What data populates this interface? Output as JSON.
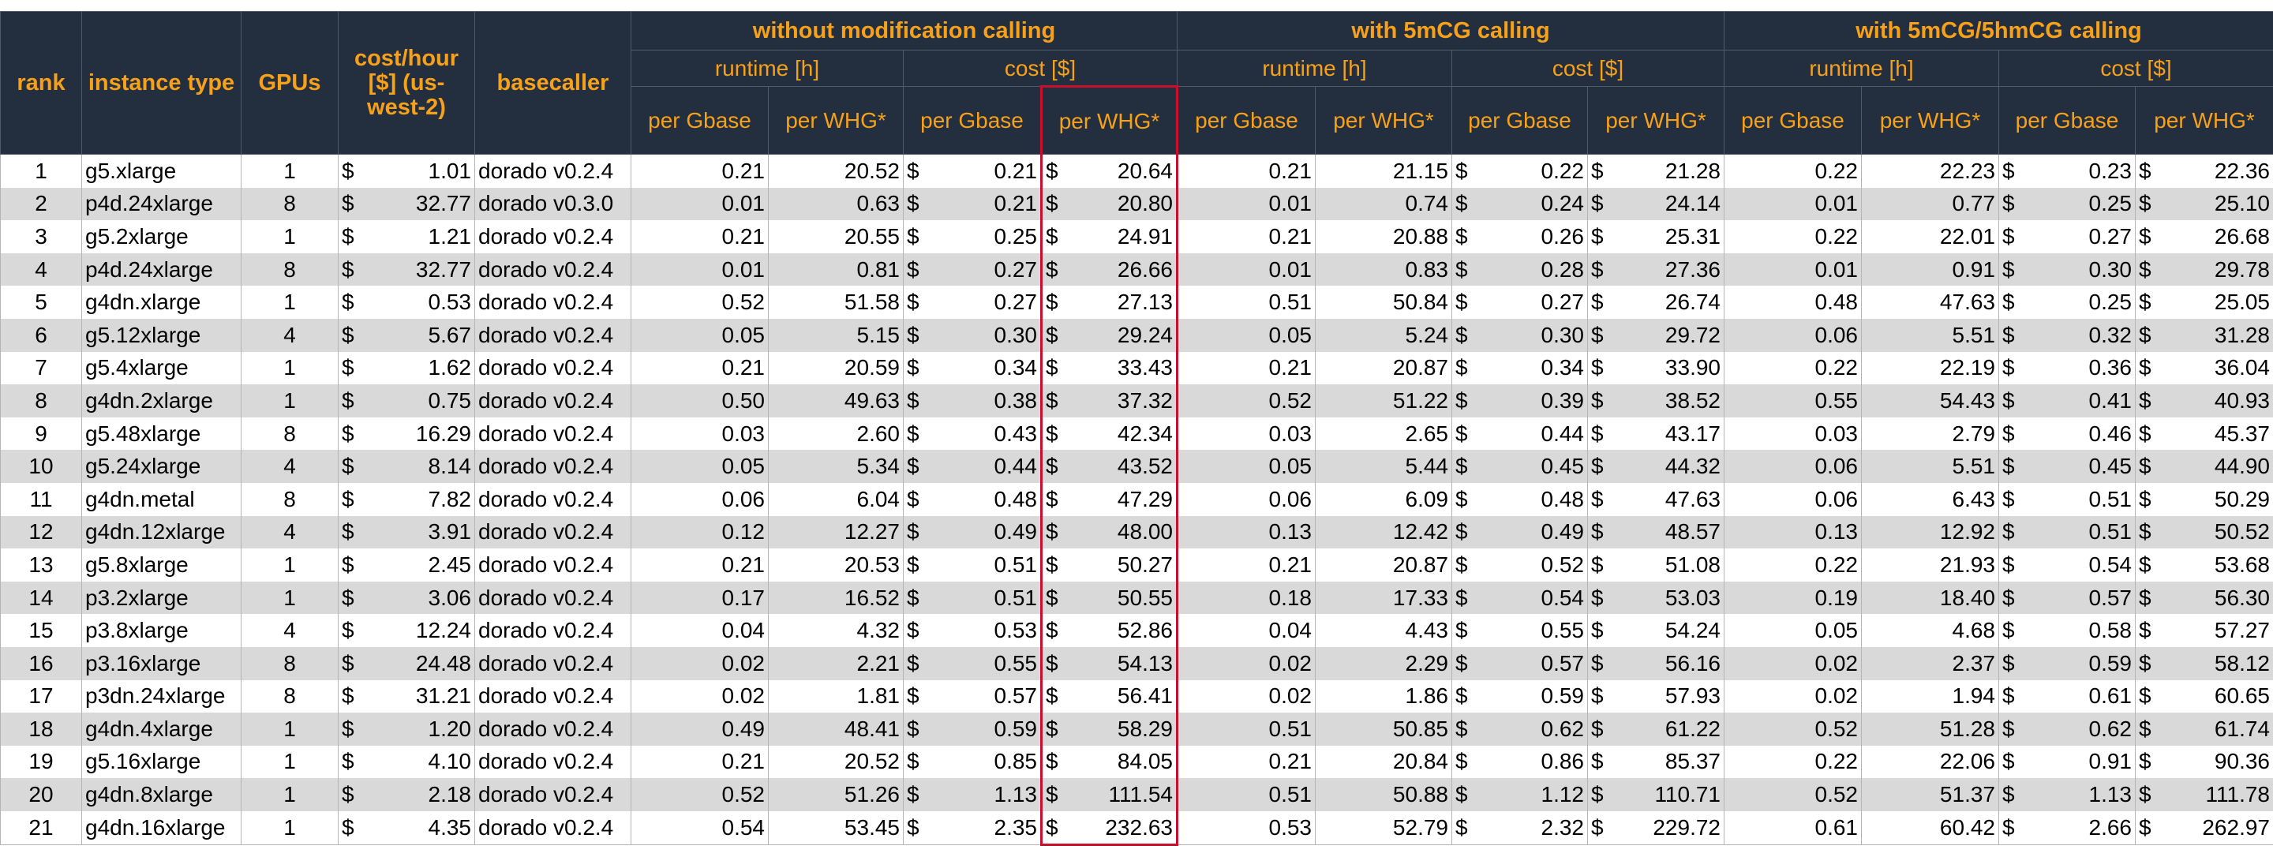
{
  "currency": "$",
  "header": {
    "columns": [
      "rank",
      "instance type",
      "GPUs",
      "cost/hour [$] (us-west-2)",
      "basecaller"
    ],
    "groups": [
      "without modification calling",
      "with 5mCG calling",
      "with 5mCG/5hmCG calling"
    ],
    "metrics": [
      "runtime [h]",
      "cost [$]"
    ],
    "units": [
      "per Gbase",
      "per WHG*"
    ]
  },
  "table": {
    "rows": [
      [
        "1",
        "g5.xlarge",
        "1",
        "1.01",
        "dorado v0.2.4",
        "0.21",
        "20.52",
        "0.21",
        "20.64",
        "0.21",
        "21.15",
        "0.22",
        "21.28",
        "0.22",
        "22.23",
        "0.23",
        "22.36"
      ],
      [
        "2",
        "p4d.24xlarge",
        "8",
        "32.77",
        "dorado v0.3.0",
        "0.01",
        "0.63",
        "0.21",
        "20.80",
        "0.01",
        "0.74",
        "0.24",
        "24.14",
        "0.01",
        "0.77",
        "0.25",
        "25.10"
      ],
      [
        "3",
        "g5.2xlarge",
        "1",
        "1.21",
        "dorado v0.2.4",
        "0.21",
        "20.55",
        "0.25",
        "24.91",
        "0.21",
        "20.88",
        "0.26",
        "25.31",
        "0.22",
        "22.01",
        "0.27",
        "26.68"
      ],
      [
        "4",
        "p4d.24xlarge",
        "8",
        "32.77",
        "dorado v0.2.4",
        "0.01",
        "0.81",
        "0.27",
        "26.66",
        "0.01",
        "0.83",
        "0.28",
        "27.36",
        "0.01",
        "0.91",
        "0.30",
        "29.78"
      ],
      [
        "5",
        "g4dn.xlarge",
        "1",
        "0.53",
        "dorado v0.2.4",
        "0.52",
        "51.58",
        "0.27",
        "27.13",
        "0.51",
        "50.84",
        "0.27",
        "26.74",
        "0.48",
        "47.63",
        "0.25",
        "25.05"
      ],
      [
        "6",
        "g5.12xlarge",
        "4",
        "5.67",
        "dorado v0.2.4",
        "0.05",
        "5.15",
        "0.30",
        "29.24",
        "0.05",
        "5.24",
        "0.30",
        "29.72",
        "0.06",
        "5.51",
        "0.32",
        "31.28"
      ],
      [
        "7",
        "g5.4xlarge",
        "1",
        "1.62",
        "dorado v0.2.4",
        "0.21",
        "20.59",
        "0.34",
        "33.43",
        "0.21",
        "20.87",
        "0.34",
        "33.90",
        "0.22",
        "22.19",
        "0.36",
        "36.04"
      ],
      [
        "8",
        "g4dn.2xlarge",
        "1",
        "0.75",
        "dorado v0.2.4",
        "0.50",
        "49.63",
        "0.38",
        "37.32",
        "0.52",
        "51.22",
        "0.39",
        "38.52",
        "0.55",
        "54.43",
        "0.41",
        "40.93"
      ],
      [
        "9",
        "g5.48xlarge",
        "8",
        "16.29",
        "dorado v0.2.4",
        "0.03",
        "2.60",
        "0.43",
        "42.34",
        "0.03",
        "2.65",
        "0.44",
        "43.17",
        "0.03",
        "2.79",
        "0.46",
        "45.37"
      ],
      [
        "10",
        "g5.24xlarge",
        "4",
        "8.14",
        "dorado v0.2.4",
        "0.05",
        "5.34",
        "0.44",
        "43.52",
        "0.05",
        "5.44",
        "0.45",
        "44.32",
        "0.06",
        "5.51",
        "0.45",
        "44.90"
      ],
      [
        "11",
        "g4dn.metal",
        "8",
        "7.82",
        "dorado v0.2.4",
        "0.06",
        "6.04",
        "0.48",
        "47.29",
        "0.06",
        "6.09",
        "0.48",
        "47.63",
        "0.06",
        "6.43",
        "0.51",
        "50.29"
      ],
      [
        "12",
        "g4dn.12xlarge",
        "4",
        "3.91",
        "dorado v0.2.4",
        "0.12",
        "12.27",
        "0.49",
        "48.00",
        "0.13",
        "12.42",
        "0.49",
        "48.57",
        "0.13",
        "12.92",
        "0.51",
        "50.52"
      ],
      [
        "13",
        "g5.8xlarge",
        "1",
        "2.45",
        "dorado v0.2.4",
        "0.21",
        "20.53",
        "0.51",
        "50.27",
        "0.21",
        "20.87",
        "0.52",
        "51.08",
        "0.22",
        "21.93",
        "0.54",
        "53.68"
      ],
      [
        "14",
        "p3.2xlarge",
        "1",
        "3.06",
        "dorado v0.2.4",
        "0.17",
        "16.52",
        "0.51",
        "50.55",
        "0.18",
        "17.33",
        "0.54",
        "53.03",
        "0.19",
        "18.40",
        "0.57",
        "56.30"
      ],
      [
        "15",
        "p3.8xlarge",
        "4",
        "12.24",
        "dorado v0.2.4",
        "0.04",
        "4.32",
        "0.53",
        "52.86",
        "0.04",
        "4.43",
        "0.55",
        "54.24",
        "0.05",
        "4.68",
        "0.58",
        "57.27"
      ],
      [
        "16",
        "p3.16xlarge",
        "8",
        "24.48",
        "dorado v0.2.4",
        "0.02",
        "2.21",
        "0.55",
        "54.13",
        "0.02",
        "2.29",
        "0.57",
        "56.16",
        "0.02",
        "2.37",
        "0.59",
        "58.12"
      ],
      [
        "17",
        "p3dn.24xlarge",
        "8",
        "31.21",
        "dorado v0.2.4",
        "0.02",
        "1.81",
        "0.57",
        "56.41",
        "0.02",
        "1.86",
        "0.59",
        "57.93",
        "0.02",
        "1.94",
        "0.61",
        "60.65"
      ],
      [
        "18",
        "g4dn.4xlarge",
        "1",
        "1.20",
        "dorado v0.2.4",
        "0.49",
        "48.41",
        "0.59",
        "58.29",
        "0.51",
        "50.85",
        "0.62",
        "61.22",
        "0.52",
        "51.28",
        "0.62",
        "61.74"
      ],
      [
        "19",
        "g5.16xlarge",
        "1",
        "4.10",
        "dorado v0.2.4",
        "0.21",
        "20.52",
        "0.85",
        "84.05",
        "0.21",
        "20.84",
        "0.86",
        "85.37",
        "0.22",
        "22.06",
        "0.91",
        "90.36"
      ],
      [
        "20",
        "g4dn.8xlarge",
        "1",
        "2.18",
        "dorado v0.2.4",
        "0.52",
        "51.26",
        "1.13",
        "111.54",
        "0.51",
        "50.88",
        "1.12",
        "110.71",
        "0.52",
        "51.37",
        "1.13",
        "111.78"
      ],
      [
        "21",
        "g4dn.16xlarge",
        "1",
        "4.35",
        "dorado v0.2.4",
        "0.54",
        "53.45",
        "2.35",
        "232.63",
        "0.53",
        "52.79",
        "2.32",
        "229.72",
        "0.61",
        "60.42",
        "2.66",
        "262.97"
      ]
    ]
  }
}
